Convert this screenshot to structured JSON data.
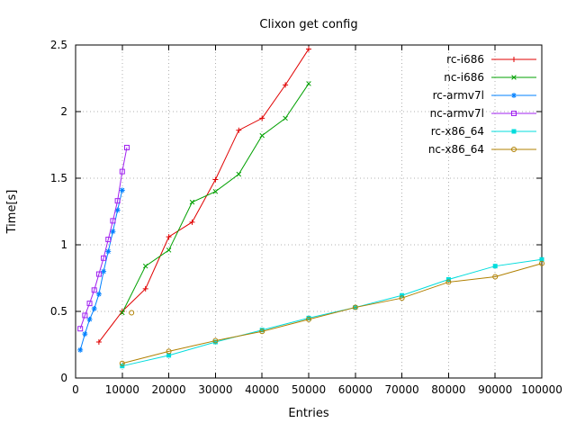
{
  "chart_data": {
    "type": "line",
    "title": "Clixon get config",
    "xlabel": "Entries",
    "ylabel": "Time[s]",
    "xlim": [
      0,
      100000
    ],
    "ylim": [
      0,
      2.5
    ],
    "xticks": [
      0,
      10000,
      20000,
      30000,
      40000,
      50000,
      60000,
      70000,
      80000,
      90000,
      100000
    ],
    "yticks": [
      0,
      0.5,
      1,
      1.5,
      2,
      2.5
    ],
    "grid": true,
    "grid_style": "dotted",
    "legend_position": "top-right-inside",
    "background_color": "#ffffff",
    "axis_color": "#000000",
    "grid_color": "#b0b0b0",
    "series": [
      {
        "name": "rc-i686",
        "color": "#e00000",
        "marker": "plus",
        "x": [
          5000,
          10000,
          15000,
          20000,
          25000,
          30000,
          35000,
          40000,
          45000,
          50000
        ],
        "y": [
          0.27,
          0.5,
          0.67,
          1.06,
          1.17,
          1.49,
          1.86,
          1.95,
          2.2,
          2.47
        ]
      },
      {
        "name": "nc-i686",
        "color": "#00a000",
        "marker": "x",
        "x": [
          10000,
          15000,
          20000,
          25000,
          30000,
          35000,
          40000,
          45000,
          50000
        ],
        "y": [
          0.49,
          0.84,
          0.96,
          1.32,
          1.4,
          1.53,
          1.82,
          1.95,
          2.21
        ]
      },
      {
        "name": "rc-armv7l",
        "color": "#0080ff",
        "marker": "asterisk",
        "x": [
          1000,
          2000,
          3000,
          4000,
          5000,
          6000,
          7000,
          8000,
          9000,
          10000
        ],
        "y": [
          0.21,
          0.33,
          0.44,
          0.52,
          0.63,
          0.8,
          0.95,
          1.1,
          1.26,
          1.41
        ]
      },
      {
        "name": "nc-armv7l",
        "color": "#a020f0",
        "marker": "square-open",
        "x": [
          1000,
          2000,
          3000,
          4000,
          5000,
          6000,
          7000,
          8000,
          9000,
          10000,
          11000
        ],
        "y": [
          0.37,
          0.47,
          0.56,
          0.66,
          0.78,
          0.9,
          1.04,
          1.18,
          1.33,
          1.55,
          1.73
        ]
      },
      {
        "name": "rc-x86_64",
        "color": "#00dcdc",
        "marker": "square-filled",
        "x": [
          10000,
          20000,
          30000,
          40000,
          50000,
          60000,
          70000,
          80000,
          90000,
          100000
        ],
        "y": [
          0.09,
          0.17,
          0.27,
          0.36,
          0.45,
          0.53,
          0.62,
          0.74,
          0.84,
          0.89
        ]
      },
      {
        "name": "nc-x86_64",
        "color": "#b08000",
        "marker": "circle-open",
        "x": [
          10000,
          20000,
          30000,
          40000,
          50000,
          60000,
          70000,
          80000,
          90000,
          100000
        ],
        "y": [
          0.11,
          0.2,
          0.28,
          0.35,
          0.44,
          0.53,
          0.6,
          0.72,
          0.76,
          0.86
        ],
        "isolated_point": {
          "x": 12000,
          "y": 0.49
        }
      }
    ]
  }
}
